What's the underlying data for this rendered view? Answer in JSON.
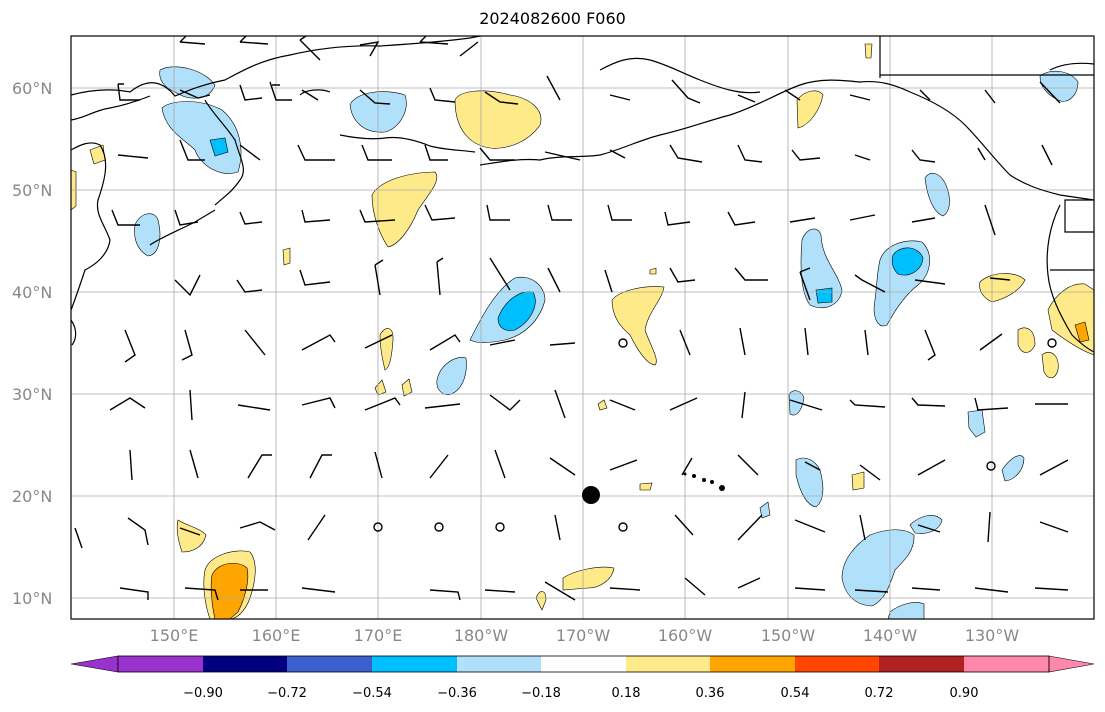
{
  "title": "2024082600 F060",
  "lat_labels": [
    "60°N",
    "50°N",
    "40°N",
    "30°N",
    "20°N",
    "10°N"
  ],
  "lon_labels": [
    "150°E",
    "160°E",
    "170°E",
    "180°W",
    "170°W",
    "160°W",
    "150°W",
    "140°W",
    "130°W"
  ],
  "colorbar": {
    "ticks": [
      "−0.90",
      "−0.72",
      "−0.54",
      "−0.36",
      "−0.18",
      "0.18",
      "0.36",
      "0.54",
      "0.72",
      "0.90"
    ],
    "colors": [
      "#9932cc",
      "#000080",
      "#3a5fcd",
      "#00bfff",
      "#b0e0fa",
      "#ffffff",
      "#ffea8a",
      "#ffa500",
      "#ff4500",
      "#b22222",
      "#ff88aa"
    ]
  },
  "colors": {
    "light_blue": "#b0e0fa",
    "cyan": "#00bfff",
    "light_yellow": "#ffea8a",
    "orange": "#ffa500",
    "coast": "#000000",
    "grid": "#aaaaaa"
  }
}
